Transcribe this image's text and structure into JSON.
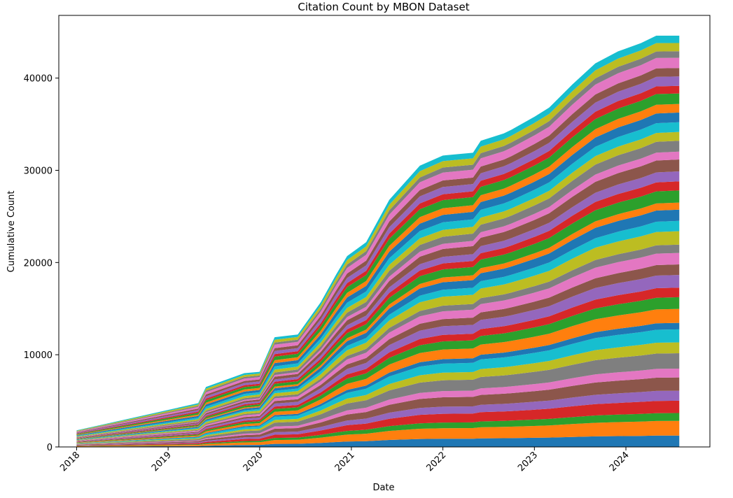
{
  "chart_data": {
    "type": "area",
    "stacked": true,
    "title": "Citation Count by MBON Dataset",
    "xlabel": "Date",
    "ylabel": "Cumulative Count",
    "xlim": [
      "2017-10-22",
      "2024-12-01"
    ],
    "ylim": [
      0,
      46800
    ],
    "legend": "none",
    "grid": false,
    "xticks": [
      "2018",
      "2019",
      "2020",
      "2021",
      "2022",
      "2023",
      "2024"
    ],
    "yticks": [
      "0",
      "10000",
      "20000",
      "30000",
      "40000"
    ],
    "ytick_values": [
      0,
      10000,
      20000,
      30000,
      40000
    ],
    "palette": [
      "#1f77b4",
      "#ff7f0e",
      "#2ca02c",
      "#d62728",
      "#9467bd",
      "#8c564b",
      "#e377c2",
      "#7f7f7f",
      "#bcbd22",
      "#17becf"
    ],
    "dates": [
      "2018-01-01",
      "2019-05-01",
      "2019-06-01",
      "2019-11-01",
      "2020-01-01",
      "2020-03-01",
      "2020-06-01",
      "2020-09-01",
      "2020-11-01",
      "2020-12-15",
      "2021-03-01",
      "2021-06-01",
      "2021-10-01",
      "2022-01-01",
      "2022-05-01",
      "2022-06-01",
      "2022-09-01",
      "2022-10-01",
      "2023-01-01",
      "2023-03-01",
      "2023-06-01",
      "2023-09-01",
      "2023-12-01",
      "2024-03-01",
      "2024-05-01",
      "2024-08-01"
    ],
    "total": [
      1800,
      4750,
      6500,
      8000,
      8150,
      11900,
      12200,
      15700,
      18700,
      20700,
      22200,
      26800,
      30500,
      31600,
      31900,
      33200,
      34000,
      34400,
      35800,
      36800,
      39300,
      41600,
      42900,
      43800,
      44600,
      44600
    ],
    "series_count": 40,
    "weights": [
      1.0,
      1.3,
      0.7,
      1.1,
      0.9,
      1.2,
      0.8,
      1.4,
      1.0,
      1.2,
      0.6,
      1.3,
      1.1,
      0.9,
      1.2,
      1.0,
      1.1,
      0.8,
      1.3,
      1.0,
      1.1,
      0.7,
      1.2,
      0.9,
      1.0,
      1.2,
      0.8,
      1.1,
      0.9,
      1.0,
      1.0,
      0.9,
      1.1,
      0.8,
      1.0,
      0.9,
      1.1,
      0.7,
      0.9,
      0.8
    ],
    "bottom_growth_start": "2019-06-01"
  }
}
